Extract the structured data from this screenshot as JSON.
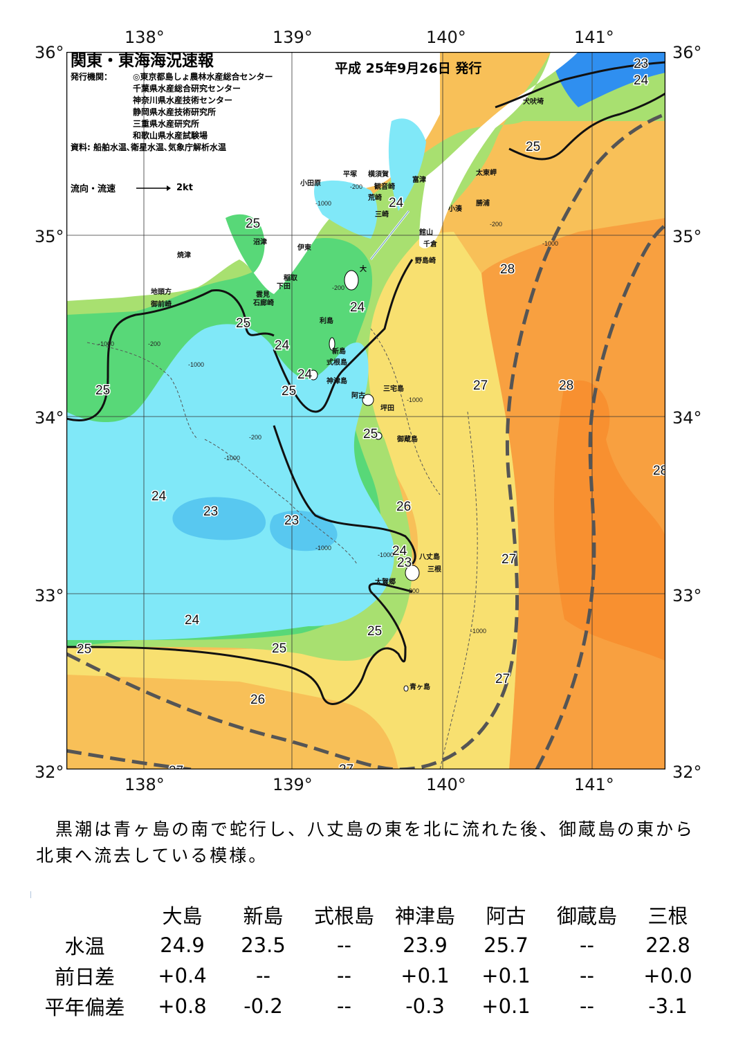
{
  "header": {
    "title": "関東・東海海況速報",
    "issue_date": "平成 25年9月26日 発行",
    "issuer_label": "発行機関：",
    "issuers": [
      "◎東京都島しょ農林水産総合センター",
      "千葉県水産総合研究センター",
      "神奈川県水産技術センター",
      "静岡県水産技術研究所",
      "三重県水産研究所",
      "和歌山県水産試験場"
    ],
    "sources": "資料: 船舶水温､衛星水温､気象庁解析水温",
    "legend_label": "流向・流速",
    "legend_speed": "2kt"
  },
  "axes": {
    "lon_labels": [
      "138°",
      "139°",
      "140°",
      "141°"
    ],
    "lat_labels": [
      "36°",
      "35°",
      "34°",
      "33°",
      "32°"
    ]
  },
  "map": {
    "colors": {
      "t22": "#2f8ff0",
      "t23": "#58c8f0",
      "t24": "#80e8f8",
      "t25": "#58d878",
      "t26": "#a8e070",
      "t27": "#f8e070",
      "t27b": "#f8c058",
      "t28": "#f8a040",
      "t28b": "#f89030",
      "land": "#ffffff",
      "kuroshio": "#555555"
    },
    "place_names": [
      "犬吠埼",
      "太東岬",
      "勝浦",
      "小湊",
      "富津",
      "館山",
      "千倉",
      "野島崎",
      "小田原",
      "平塚",
      "横須賀",
      "観音崎",
      "荒崎",
      "三崎",
      "大",
      "沼津",
      "焼津",
      "伊東",
      "稲取",
      "下田",
      "雲見",
      "石廊崎",
      "地頭方",
      "御前崎",
      "利島",
      "新島",
      "式根島",
      "神津島",
      "阿古",
      "三宅島",
      "坪田",
      "御蔵島",
      "八丈島",
      "三根",
      "大賀郷",
      "青ヶ島"
    ],
    "isotherm_labels": [
      "23",
      "24",
      "25",
      "26",
      "27",
      "28"
    ],
    "depth_labels": [
      "-200",
      "-1000"
    ]
  },
  "summary": "黒潮は青ヶ島の南で蛇行し、八丈島の東を北に流れた後、御蔵島の東から北東へ流去している模様。",
  "table": {
    "stations": [
      "大島",
      "新島",
      "式根島",
      "神津島",
      "阿古",
      "御蔵島",
      "三根"
    ],
    "rows": [
      {
        "label": "水温",
        "values": [
          "24.9",
          "23.5",
          "--",
          "23.9",
          "25.7",
          "--",
          "22.8"
        ]
      },
      {
        "label": "前日差",
        "values": [
          "+0.4",
          "--",
          "--",
          "+0.1",
          "+0.1",
          "--",
          "+0.0"
        ]
      },
      {
        "label": "平年偏差",
        "values": [
          "+0.8",
          "-0.2",
          "--",
          "-0.3",
          "+0.1",
          "--",
          "-3.1"
        ]
      }
    ]
  }
}
